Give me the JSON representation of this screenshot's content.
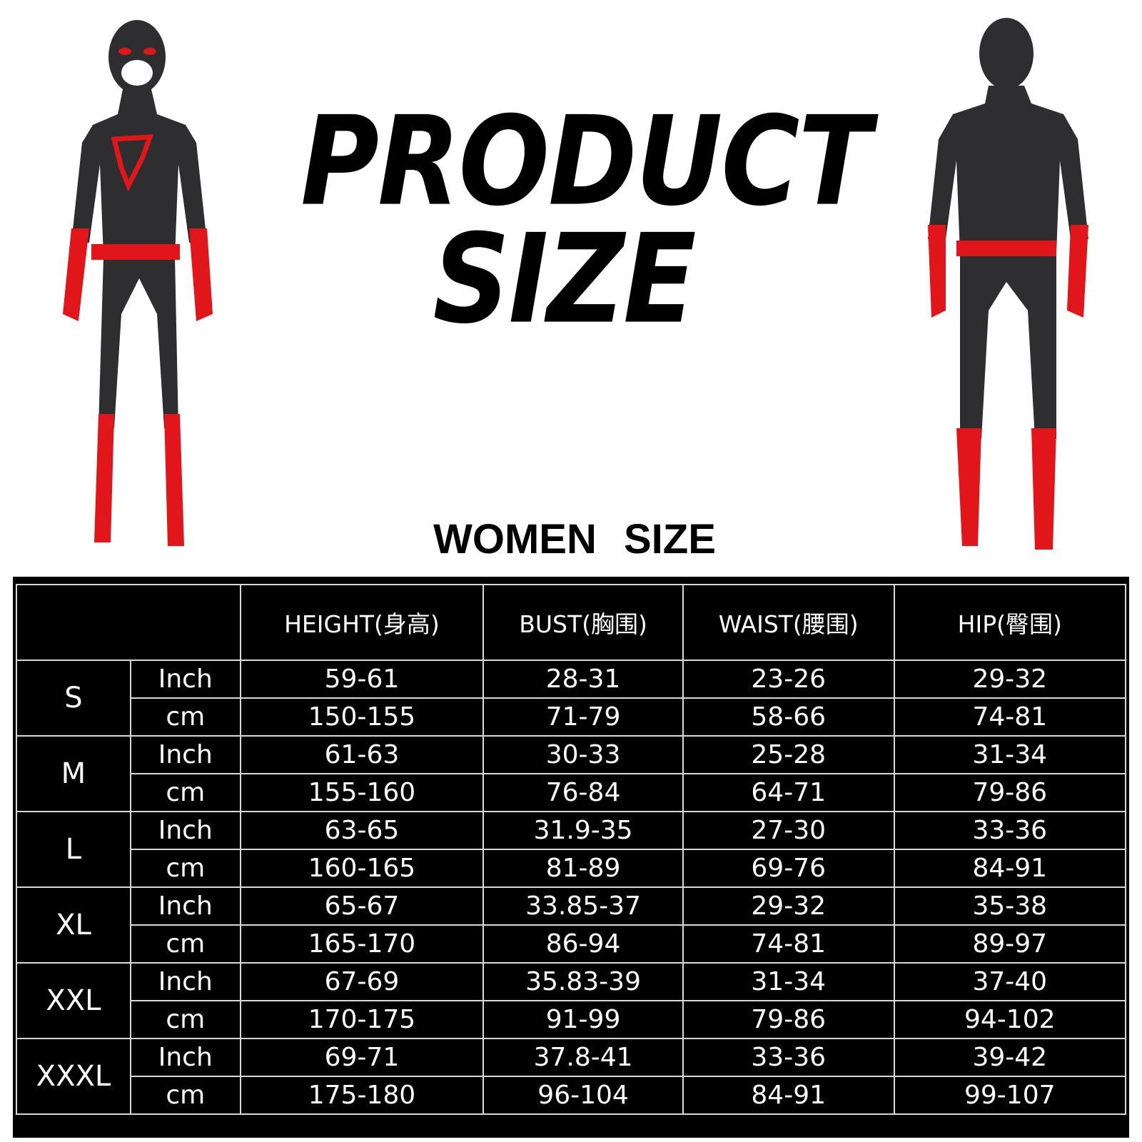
{
  "title_line1": "PRODUCT",
  "title_line2": "SIZE",
  "subtitle": "WOMEN  SIZE",
  "colors": {
    "suit": "#2e2e30",
    "accent": "#e0161b",
    "table_bg": "#000000",
    "grid": "#d8d8d8"
  },
  "table": {
    "headers": [
      "",
      "HEIGHT(身高)",
      "BUST(胸围)",
      "WAIST(腰围)",
      "HIP(臀围)"
    ],
    "rows": [
      {
        "size": "S",
        "inch": {
          "unit": "Inch",
          "height": "59-61",
          "bust": "28-31",
          "waist": "23-26",
          "hip": "29-32"
        },
        "cm": {
          "unit": "cm",
          "height": "150-155",
          "bust": "71-79",
          "waist": "58-66",
          "hip": "74-81"
        }
      },
      {
        "size": "M",
        "inch": {
          "unit": "Inch",
          "height": "61-63",
          "bust": "30-33",
          "waist": "25-28",
          "hip": "31-34"
        },
        "cm": {
          "unit": "cm",
          "height": "155-160",
          "bust": "76-84",
          "waist": "64-71",
          "hip": "79-86"
        }
      },
      {
        "size": "L",
        "inch": {
          "unit": "Inch",
          "height": "63-65",
          "bust": "31.9-35",
          "waist": "27-30",
          "hip": "33-36"
        },
        "cm": {
          "unit": "cm",
          "height": "160-165",
          "bust": "81-89",
          "waist": "69-76",
          "hip": "84-91"
        }
      },
      {
        "size": "XL",
        "inch": {
          "unit": "Inch",
          "height": "65-67",
          "bust": "33.85-37",
          "waist": "29-32",
          "hip": "35-38"
        },
        "cm": {
          "unit": "cm",
          "height": "165-170",
          "bust": "86-94",
          "waist": "74-81",
          "hip": "89-97"
        }
      },
      {
        "size": "XXL",
        "inch": {
          "unit": "Inch",
          "height": "67-69",
          "bust": "35.83-39",
          "waist": "31-34",
          "hip": "37-40"
        },
        "cm": {
          "unit": "cm",
          "height": "170-175",
          "bust": "91-99",
          "waist": "79-86",
          "hip": "94-102"
        }
      },
      {
        "size": "XXXL",
        "inch": {
          "unit": "Inch",
          "height": "69-71",
          "bust": "37.8-41",
          "waist": "33-36",
          "hip": "39-42"
        },
        "cm": {
          "unit": "cm",
          "height": "175-180",
          "bust": "96-104",
          "waist": "84-91",
          "hip": "99-107"
        }
      }
    ]
  }
}
